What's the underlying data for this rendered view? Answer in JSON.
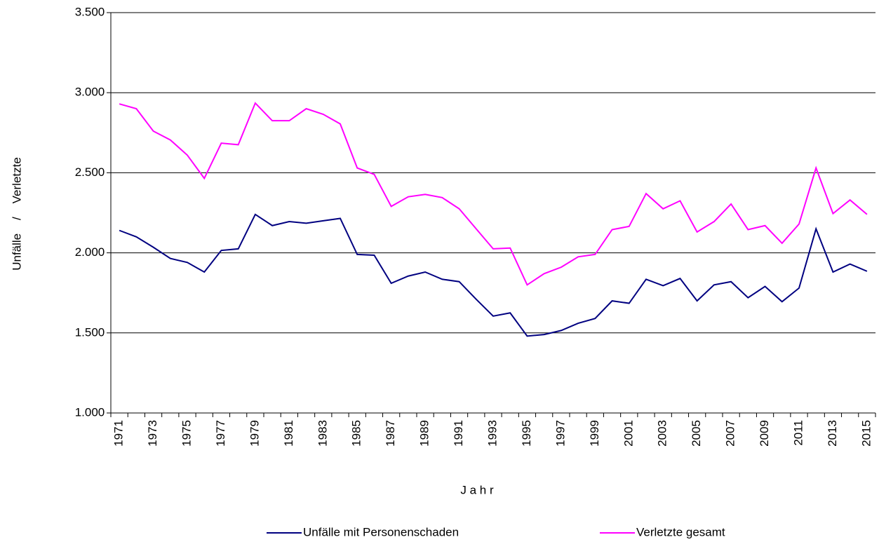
{
  "chart_data": {
    "type": "line",
    "y_label": "Unfälle    /    Verletzte",
    "x_label": "J a h r",
    "categories": [
      "1971",
      null,
      "1973",
      null,
      "1975",
      null,
      "1977",
      null,
      "1979",
      null,
      "1981",
      null,
      "1983",
      null,
      "1985",
      null,
      "1987",
      null,
      "1989",
      null,
      "1991",
      null,
      "1993",
      null,
      "1995",
      null,
      "1997",
      null,
      "1999",
      null,
      "2001",
      null,
      "2003",
      null,
      "2005",
      null,
      "2007",
      null,
      "2009",
      null,
      "2011",
      null,
      "2013",
      null,
      "2015"
    ],
    "series": [
      {
        "name": "Unfälle mit Personenschaden",
        "color": "#000080",
        "values": [
          2140,
          2100,
          2035,
          1965,
          1940,
          1880,
          2015,
          2025,
          2240,
          2170,
          2195,
          2185,
          2200,
          2215,
          1990,
          1985,
          1810,
          1855,
          1880,
          1835,
          1820,
          1710,
          1605,
          1625,
          1480,
          1490,
          1515,
          1560,
          1590,
          1700,
          1685,
          1835,
          1795,
          1840,
          1700,
          1800,
          1820,
          1720,
          1790,
          1695,
          1780,
          2150,
          1880,
          1930,
          1885
        ]
      },
      {
        "name": "Verletzte gesamt",
        "color": "#ff00ff",
        "values": [
          2930,
          2900,
          2760,
          2705,
          2610,
          2465,
          2685,
          2675,
          2935,
          2825,
          2825,
          2900,
          2865,
          2805,
          2530,
          2490,
          2290,
          2350,
          2365,
          2345,
          2275,
          2150,
          2025,
          2030,
          1800,
          1870,
          1910,
          1975,
          1990,
          2145,
          2165,
          2370,
          2275,
          2325,
          2130,
          2195,
          2305,
          2145,
          2170,
          2060,
          2180,
          2530,
          2245,
          2330,
          2240
        ]
      }
    ],
    "ylim": [
      1000,
      3500
    ],
    "yticks": [
      {
        "value": 1000,
        "label": "1.000"
      },
      {
        "value": 1500,
        "label": "1.500"
      },
      {
        "value": 2000,
        "label": "2.000"
      },
      {
        "value": 2500,
        "label": "2.500"
      },
      {
        "value": 3000,
        "label": "3.000"
      },
      {
        "value": 3500,
        "label": "3.500"
      }
    ],
    "grid": true,
    "legend": "bottom"
  }
}
